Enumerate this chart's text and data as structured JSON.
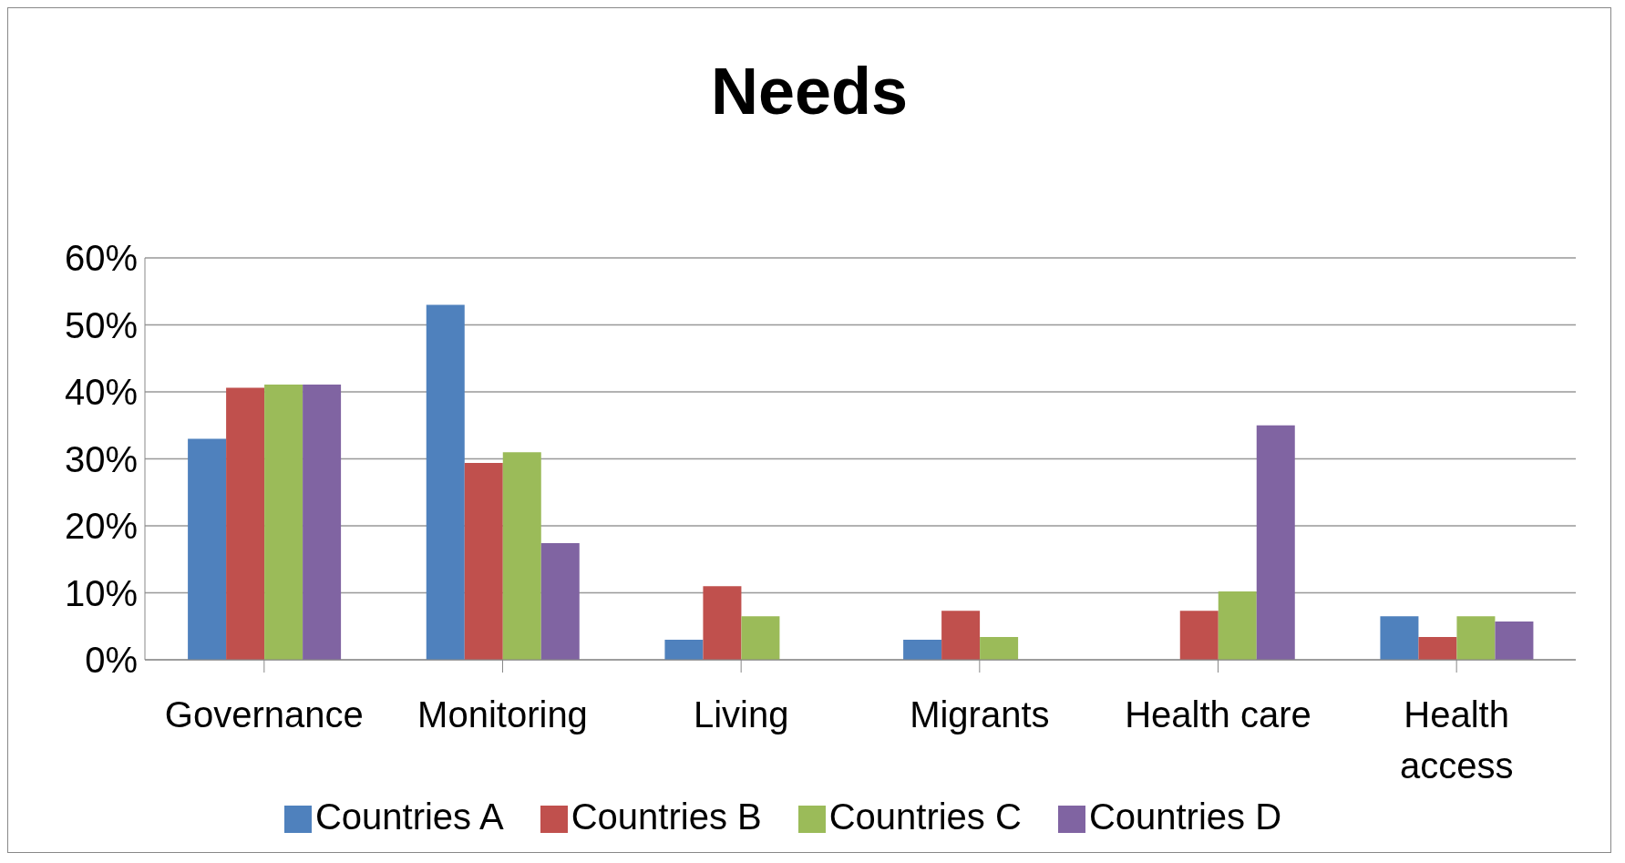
{
  "chart_data": {
    "type": "bar",
    "title": "Needs",
    "categories": [
      "Governance",
      "Monitoring",
      "Living",
      "Migrants",
      "Health care",
      "Health access"
    ],
    "series": [
      {
        "name": "Countries A",
        "color": "#4f81bd",
        "values": [
          33,
          53,
          3,
          3,
          null,
          6.5
        ]
      },
      {
        "name": "Countries B",
        "color": "#c0504d",
        "values": [
          40.6,
          29.4,
          11,
          7.3,
          7.3,
          3.4
        ]
      },
      {
        "name": "Countries C",
        "color": "#9bbb59",
        "values": [
          41.1,
          31,
          6.5,
          3.4,
          10.2,
          6.5
        ]
      },
      {
        "name": "Countries D",
        "color": "#8064a2",
        "values": [
          41.1,
          17.4,
          null,
          null,
          35,
          5.7
        ]
      }
    ],
    "ylim": [
      0,
      60
    ],
    "yticks": [
      {
        "value": 0,
        "label": "0%"
      },
      {
        "value": 10,
        "label": "10%"
      },
      {
        "value": 20,
        "label": "20%"
      },
      {
        "value": 30,
        "label": "30%"
      },
      {
        "value": 40,
        "label": "40%"
      },
      {
        "value": 50,
        "label": "50%"
      },
      {
        "value": 60,
        "label": "60%"
      }
    ],
    "grid": "y",
    "legend": "bottom"
  }
}
